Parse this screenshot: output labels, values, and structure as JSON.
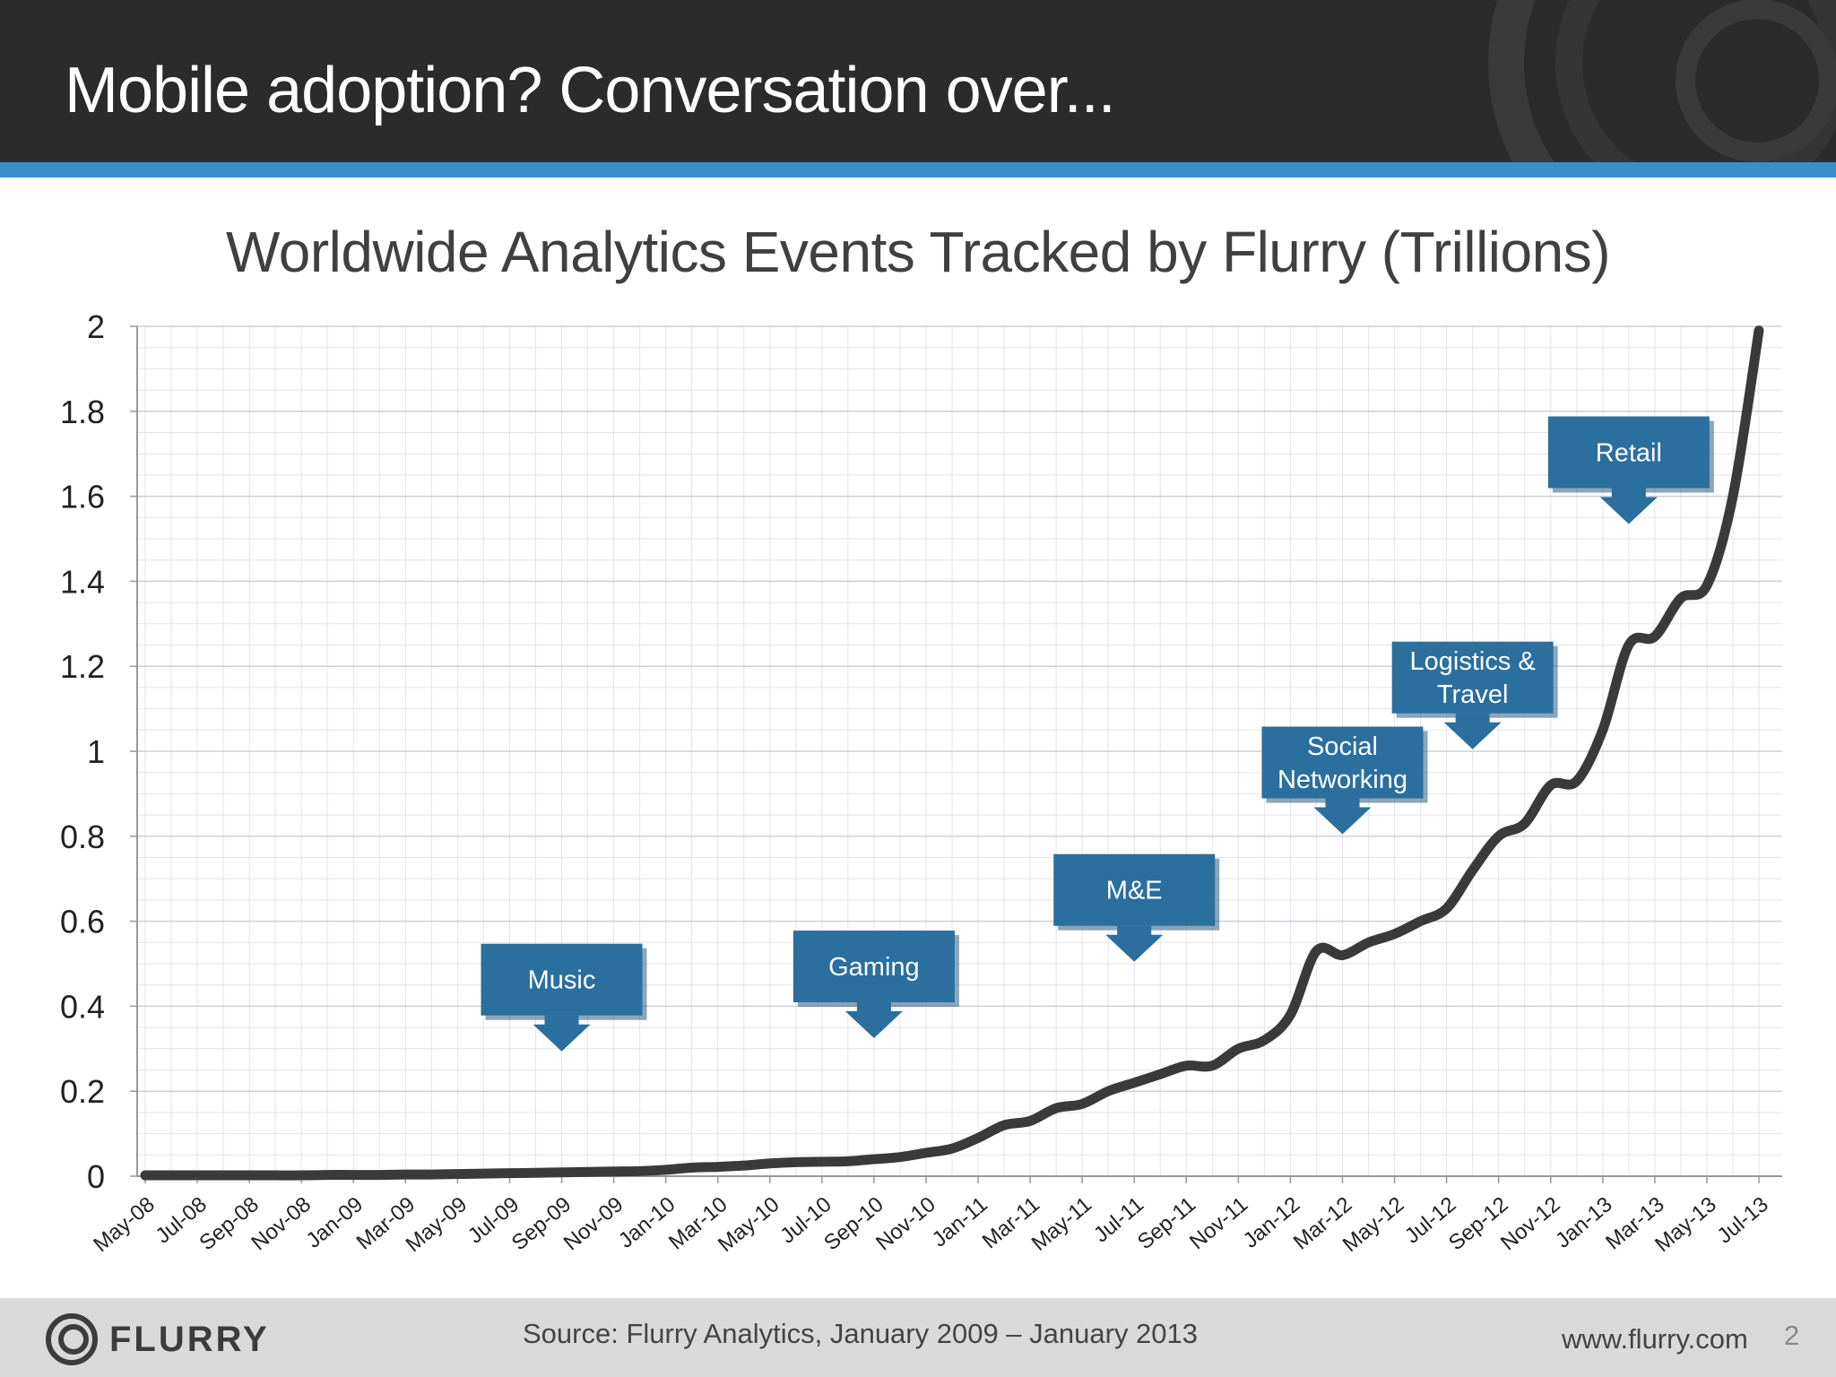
{
  "slide": {
    "title": "Mobile adoption? Conversation over...",
    "source": "Source: Flurry Analytics, January 2009 – January 2013",
    "brand": "FLURRY",
    "website": "www.flurry.com",
    "page_number": "2"
  },
  "colors": {
    "header": "#2b2b2b",
    "accent_stripe": "#3a8fcb",
    "callout": "#2a6f9e",
    "line": "#3a3a3a",
    "footer": "#d9d9d9"
  },
  "chart_data": {
    "type": "line",
    "title": "Worldwide Analytics Events Tracked by Flurry (Trillions)",
    "xlabel": "",
    "ylabel": "",
    "ylim": [
      0,
      2
    ],
    "yticks": [
      "0",
      "0.2",
      "0.4",
      "0.6",
      "0.8",
      "1",
      "1.2",
      "1.4",
      "1.6",
      "1.8",
      "2"
    ],
    "grid": true,
    "legend": "none",
    "x_tick_labels": [
      "May-08",
      "Jul-08",
      "Sep-08",
      "Nov-08",
      "Jan-09",
      "Mar-09",
      "May-09",
      "Jul-09",
      "Sep-09",
      "Nov-09",
      "Jan-10",
      "Mar-10",
      "May-10",
      "Jul-10",
      "Sep-10",
      "Nov-10",
      "Jan-11",
      "Mar-11",
      "May-11",
      "Jul-11",
      "Sep-11",
      "Nov-11",
      "Jan-12",
      "Mar-12",
      "May-12",
      "Jul-12",
      "Sep-12",
      "Nov-12",
      "Jan-13",
      "Mar-13",
      "May-13",
      "Jul-13"
    ],
    "months": [
      "May-08",
      "Jun-08",
      "Jul-08",
      "Aug-08",
      "Sep-08",
      "Oct-08",
      "Nov-08",
      "Dec-08",
      "Jan-09",
      "Feb-09",
      "Mar-09",
      "Apr-09",
      "May-09",
      "Jun-09",
      "Jul-09",
      "Aug-09",
      "Sep-09",
      "Oct-09",
      "Nov-09",
      "Dec-09",
      "Jan-10",
      "Feb-10",
      "Mar-10",
      "Apr-10",
      "May-10",
      "Jun-10",
      "Jul-10",
      "Aug-10",
      "Sep-10",
      "Oct-10",
      "Nov-10",
      "Dec-10",
      "Jan-11",
      "Feb-11",
      "Mar-11",
      "Apr-11",
      "May-11",
      "Jun-11",
      "Jul-11",
      "Aug-11",
      "Sep-11",
      "Oct-11",
      "Nov-11",
      "Dec-11",
      "Jan-12",
      "Feb-12",
      "Mar-12",
      "Apr-12",
      "May-12",
      "Jun-12",
      "Jul-12",
      "Aug-12",
      "Sep-12",
      "Oct-12",
      "Nov-12",
      "Dec-12",
      "Jan-13",
      "Feb-13",
      "Mar-13",
      "Apr-13",
      "May-13",
      "Jun-13",
      "Jul-13"
    ],
    "series": [
      {
        "values": [
          0.002,
          0.002,
          0.002,
          0.002,
          0.002,
          0.002,
          0.002,
          0.003,
          0.003,
          0.003,
          0.004,
          0.004,
          0.005,
          0.006,
          0.007,
          0.008,
          0.009,
          0.01,
          0.011,
          0.012,
          0.015,
          0.02,
          0.022,
          0.025,
          0.03,
          0.033,
          0.034,
          0.035,
          0.04,
          0.045,
          0.055,
          0.065,
          0.09,
          0.12,
          0.13,
          0.16,
          0.17,
          0.2,
          0.22,
          0.24,
          0.26,
          0.26,
          0.3,
          0.32,
          0.38,
          0.53,
          0.52,
          0.55,
          0.57,
          0.6,
          0.63,
          0.72,
          0.8,
          0.83,
          0.92,
          0.93,
          1.05,
          1.25,
          1.27,
          1.36,
          1.39,
          1.6,
          1.99
        ]
      }
    ],
    "annotations": [
      {
        "lines": [
          "Music"
        ],
        "month": "Sep-09"
      },
      {
        "lines": [
          "Gaming"
        ],
        "month": "Sep-10"
      },
      {
        "lines": [
          "M&E"
        ],
        "month": "Jul-11"
      },
      {
        "lines": [
          "Social",
          "Networking"
        ],
        "month": "Mar-12"
      },
      {
        "lines": [
          "Logistics &",
          "Travel"
        ],
        "month": "Aug-12"
      },
      {
        "lines": [
          "Retail"
        ],
        "month": "Feb-13"
      }
    ]
  }
}
